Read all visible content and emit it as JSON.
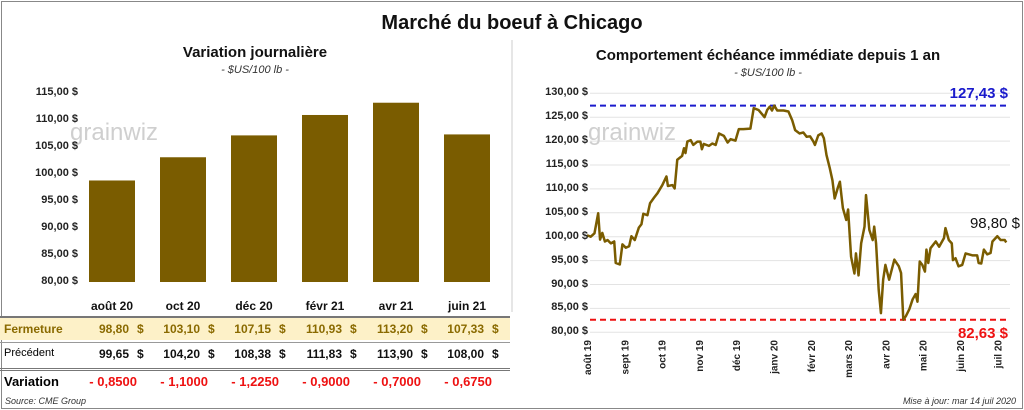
{
  "title": "Marché du boeuf à Chicago",
  "left": {
    "title": "Variation journalière",
    "subtitle": "- $US/100 lb -"
  },
  "right": {
    "title": "Comportement  échéance immédiate depuis 1 an",
    "subtitle": "- $US/100 lb -"
  },
  "watermark": "grainwiz",
  "table": {
    "row_labels": [
      "Fermeture",
      "Précédent",
      "Variation"
    ],
    "fermeture": [
      "98,80",
      "103,10",
      "107,15",
      "110,93",
      "113,20",
      "107,33"
    ],
    "precedent": [
      "99,65",
      "104,20",
      "108,38",
      "111,83",
      "113,90",
      "108,00"
    ],
    "variation": [
      "- 0,8500",
      "- 1,1000",
      "- 1,2250",
      "- 0,9000",
      "- 0,7000",
      "- 0,6750"
    ],
    "currency": "$"
  },
  "source": "Source: CME Group",
  "updated": "Mise à jour: mar 14 juil 2020",
  "colors": {
    "bar": "#7a5c00",
    "line": "#7a5c00",
    "max": "#1a1acc",
    "min": "#ee1111",
    "fermeture_bg": "#fdf1c8",
    "fermeture_text": "#8a6a00",
    "negative": "#ee1111"
  },
  "chart_data": [
    {
      "type": "bar",
      "title": "Variation journalière",
      "subtitle": "- $US/100 lb -",
      "categories": [
        "août 20",
        "oct 20",
        "déc 20",
        "févr 21",
        "avr 21",
        "juin 21"
      ],
      "values": [
        98.8,
        103.1,
        107.15,
        110.93,
        113.2,
        107.33
      ],
      "ylim": [
        80,
        115
      ],
      "yticks": [
        "80,00 $",
        "85,00 $",
        "90,00 $",
        "95,00 $",
        "100,00 $",
        "105,00 $",
        "110,00 $",
        "115,00 $"
      ],
      "grid": false
    },
    {
      "type": "line",
      "title": "Comportement  échéance immédiate depuis 1 an",
      "subtitle": "- $US/100 lb -",
      "ylim": [
        80,
        130
      ],
      "yticks": [
        "80,00 $",
        "85,00 $",
        "90,00 $",
        "95,00 $",
        "100,00 $",
        "105,00 $",
        "110,00 $",
        "115,00 $",
        "120,00 $",
        "125,00 $",
        "130,00 $"
      ],
      "xticks": [
        "août 19",
        "sept 19",
        "oct 19",
        "nov 19",
        "déc 19",
        "janv 20",
        "févr 20",
        "mars 20",
        "avr 20",
        "mai 20",
        "juin 20",
        "juil 20"
      ],
      "grid": true,
      "max": {
        "value": 127.43,
        "label": "127,43 $"
      },
      "min": {
        "value": 82.63,
        "label": "82,63 $"
      },
      "last": {
        "value": 98.8,
        "label": "98,80 $"
      },
      "x_months": [
        0,
        0.1,
        0.2,
        0.3,
        0.35,
        0.41,
        0.48,
        0.55,
        0.64,
        0.73,
        0.77,
        0.88,
        0.95,
        1.04,
        1.13,
        1.19,
        1.28,
        1.39,
        1.46,
        1.51,
        1.62,
        1.69,
        1.8,
        1.89,
        2.02,
        2.13,
        2.17,
        2.29,
        2.35,
        2.42,
        2.55,
        2.6,
        2.64,
        2.69,
        2.78,
        2.85,
        2.96,
        3.04,
        3.08,
        3.13,
        3.27,
        3.36,
        3.45,
        3.54,
        3.67,
        3.77,
        3.85,
        3.98,
        4.07,
        4.19,
        4.38,
        4.47,
        4.6,
        4.76,
        4.83,
        4.9,
        4.96,
        5.02,
        5.1,
        5.27,
        5.4,
        5.5,
        5.58,
        5.7,
        5.8,
        5.89,
        5.98,
        6.07,
        6.11,
        6.2,
        6.29,
        6.35,
        6.42,
        6.51,
        6.58,
        6.64,
        6.73,
        6.78,
        6.82,
        6.86,
        6.95,
        7,
        7.04,
        7.08,
        7.17,
        7.21,
        7.28,
        7.35,
        7.44,
        7.48,
        7.57,
        7.66,
        7.7,
        7.75,
        7.82,
        7.88,
        7.94,
        8,
        8.1,
        8.24,
        8.36,
        8.42,
        8.48,
        8.55,
        8.64,
        8.73,
        8.81,
        8.86,
        8.92,
        8.99,
        9.06,
        9.1,
        9.15,
        9.21,
        9.35,
        9.44,
        9.57,
        9.61,
        9.7,
        9.78,
        9.81,
        9.88,
        9.96,
        10.06,
        10.15,
        10.33,
        10.46,
        10.5,
        10.57,
        10.64,
        10.73,
        10.82,
        10.87,
        11,
        11.09,
        11.2,
        11.24
      ],
      "values": [
        100.3,
        100,
        100.7,
        104.9,
        99.4,
        100.8,
        99,
        99.3,
        98.6,
        99,
        94.5,
        94.2,
        98.4,
        97.7,
        98,
        100.1,
        99.3,
        101.9,
        102.6,
        104.8,
        104.5,
        107,
        108.2,
        109.1,
        110.8,
        112.6,
        110.6,
        110.8,
        110.1,
        116.1,
        116.9,
        118.5,
        117.5,
        119.9,
        120.2,
        119.2,
        119.9,
        119.9,
        118.3,
        119.4,
        119,
        119.5,
        119.2,
        121.6,
        121.1,
        119.7,
        120.4,
        120.1,
        122.5,
        122.5,
        122.6,
        126.9,
        126.5,
        125,
        126.5,
        127.2,
        126.4,
        127.43,
        126.4,
        126.4,
        126.2,
        124.4,
        122.3,
        121.6,
        121.8,
        120.9,
        121,
        119.9,
        119.2,
        121.2,
        121.6,
        120.6,
        117.1,
        114.3,
        111.8,
        108,
        110.4,
        111.5,
        108.7,
        106,
        103.5,
        105.7,
        100.7,
        95.8,
        92.3,
        96.5,
        91.9,
        98.6,
        102.1,
        108.7,
        101.4,
        99.3,
        102.1,
        98.6,
        88.9,
        84,
        91,
        94.1,
        91,
        95.2,
        93.8,
        92.4,
        82.63,
        83.4,
        84.8,
        86.9,
        88,
        86.4,
        94.8,
        94.1,
        92.7,
        97.3,
        94.5,
        97.6,
        99,
        97.9,
        99.7,
        101.8,
        99.3,
        98.6,
        95.1,
        95.5,
        93.8,
        94.1,
        96.5,
        96.1,
        96.1,
        94.5,
        94.4,
        97.3,
        96.3,
        96.6,
        99,
        100.1,
        99.3,
        99.3,
        98.8
      ]
    }
  ]
}
